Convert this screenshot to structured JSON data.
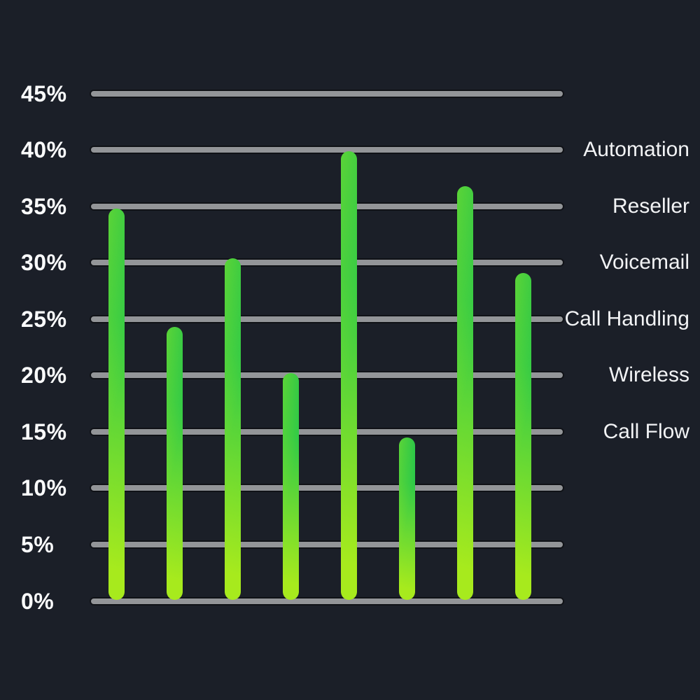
{
  "app": {
    "background_color": "#1b1f28",
    "title": ""
  },
  "chart_data": {
    "type": "bar",
    "title": "",
    "xlabel": "",
    "ylabel": "",
    "values": [
      34.8,
      24.3,
      30.4,
      20.2,
      39.9,
      14.5,
      36.8,
      29.1
    ],
    "ylim": [
      0,
      45
    ],
    "ytick_values": [
      0,
      5,
      10,
      15,
      20,
      25,
      30,
      35,
      40,
      45
    ],
    "yticks": [
      "0%",
      "5%",
      "10%",
      "15%",
      "20%",
      "25%",
      "30%",
      "35%",
      "40%",
      "45%"
    ],
    "grid": true,
    "bar_style": "rounded-capsule-gradient",
    "colors": {
      "background": "#1b1f28",
      "bar_gradient_top": "#1cc24d",
      "bar_gradient_bottom": "#a7ea1d",
      "gridline_fill": "#939598",
      "gridline_border": "#101217",
      "tick_text": "#fbfcfd",
      "legend_text": "#f2f3f5"
    },
    "legend": {
      "position": "right",
      "entries": [
        {
          "label": "Automation",
          "align_at_percent": 40
        },
        {
          "label": "Reseller",
          "align_at_percent": 35
        },
        {
          "label": "Voicemail",
          "align_at_percent": 30
        },
        {
          "label": "Call Handling",
          "align_at_percent": 25
        },
        {
          "label": "Wireless",
          "align_at_percent": 20
        },
        {
          "label": "Call Flow",
          "align_at_percent": 15
        }
      ]
    }
  }
}
